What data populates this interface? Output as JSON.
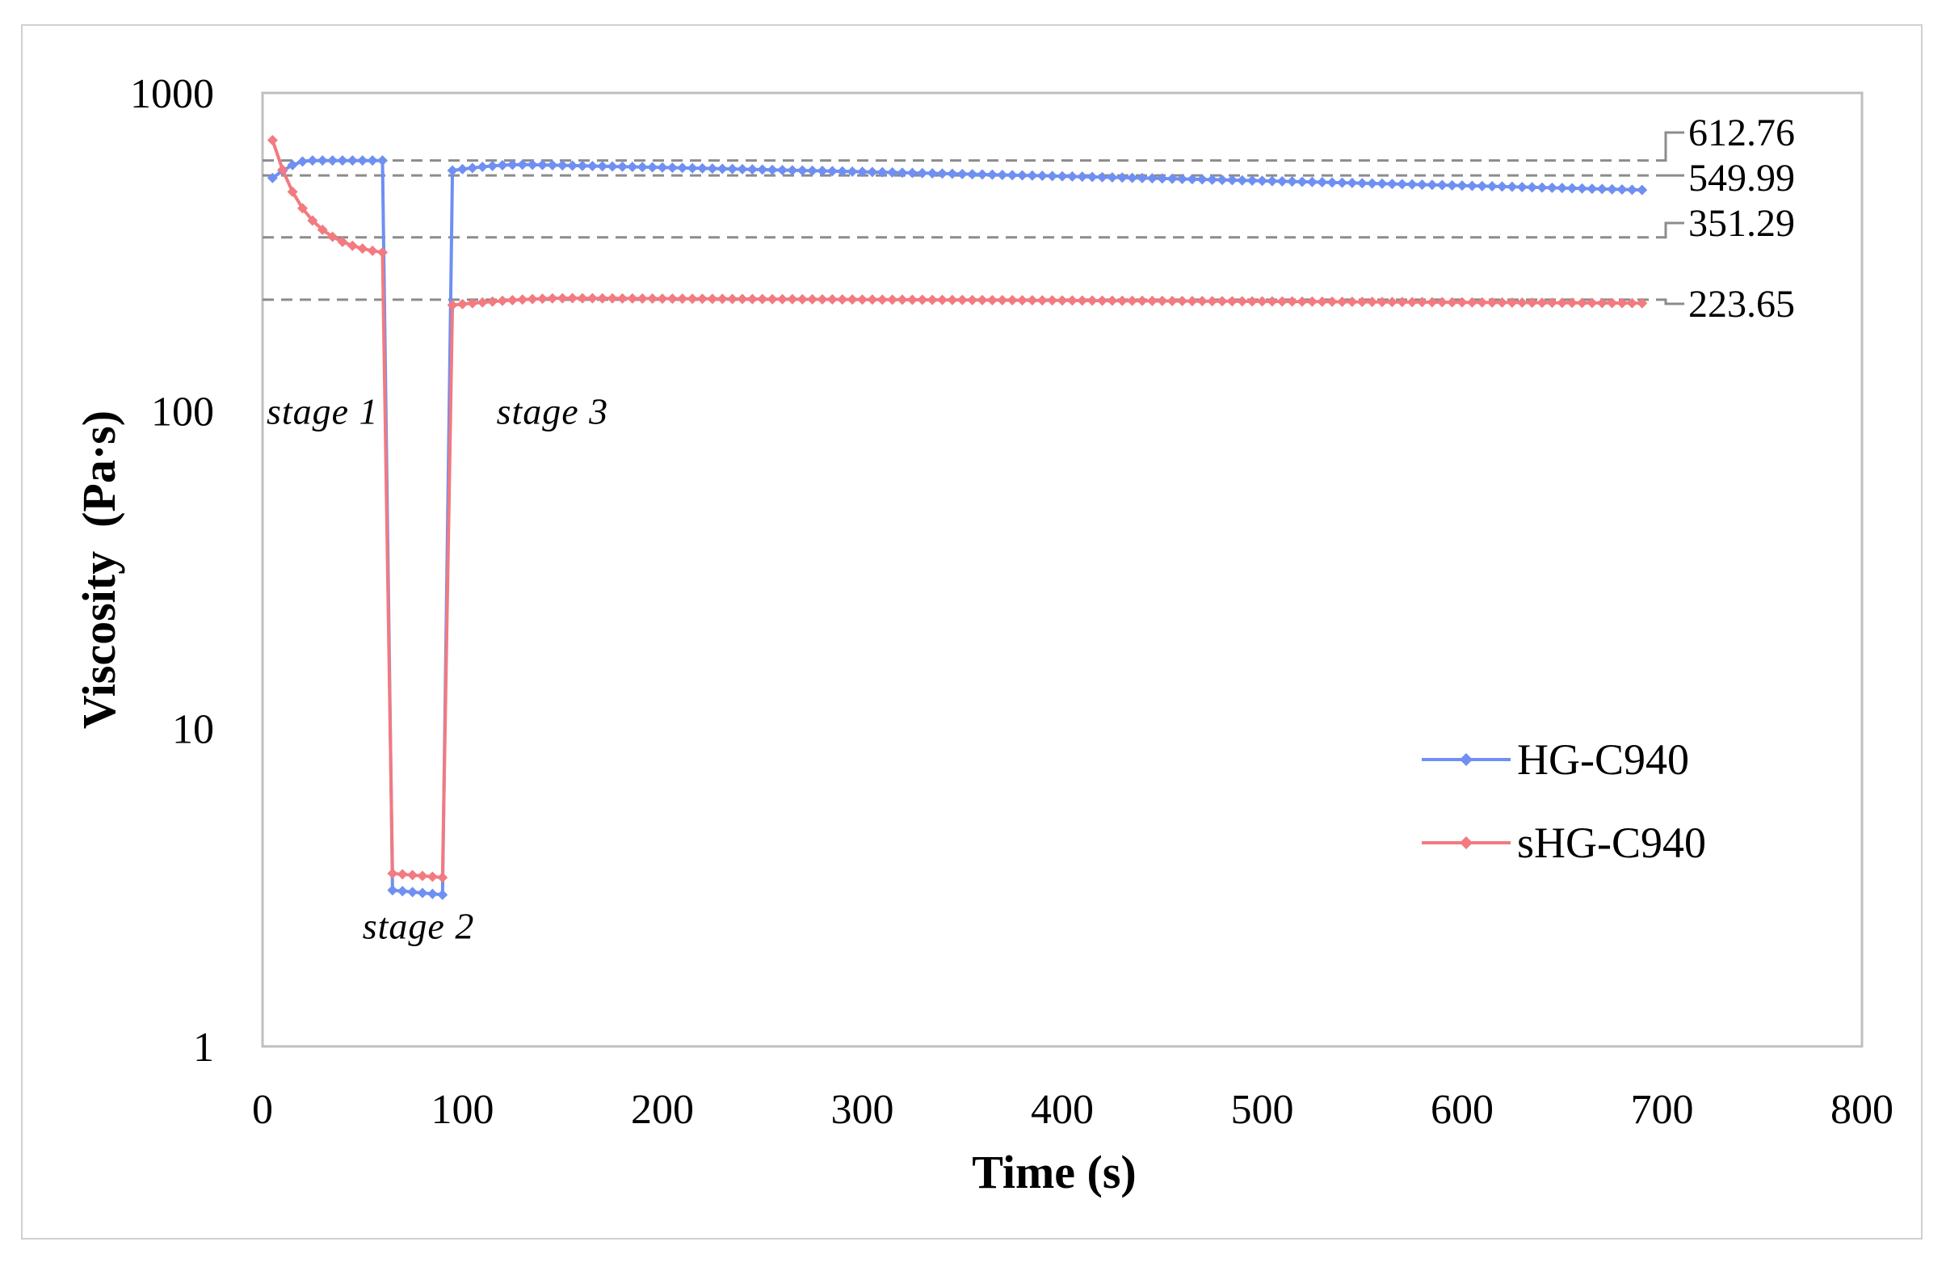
{
  "chart_data": {
    "type": "line",
    "title": "",
    "xlabel": "Time (s)",
    "ylabel": "Viscosity  (Pa·s)",
    "xlim": [
      0,
      800
    ],
    "ylim": [
      1,
      1000
    ],
    "yscale": "log",
    "grid": false,
    "legend_position": "right-middle",
    "x_ticks": [
      0,
      100,
      200,
      300,
      400,
      500,
      600,
      700,
      800
    ],
    "x_tick_labels": [
      "0",
      "100",
      "200",
      "300",
      "400",
      "500",
      "600",
      "700",
      "800"
    ],
    "y_ticks": [
      1,
      10,
      100,
      1000
    ],
    "y_tick_labels": [
      "1",
      "10",
      "100",
      "1000"
    ],
    "colors": {
      "HG-C940": "#6f8ff2",
      "sHG-C940": "#f27a80",
      "reference": "#8c8c8c",
      "plot_border": "#bfbfbf"
    },
    "series": [
      {
        "name": "HG-C940",
        "segments": [
          {
            "stage": 1,
            "x_start": 5,
            "x_end": 60,
            "n": 12,
            "y_start": 540,
            "y_end": 612.76,
            "y_peak": 612.76,
            "peak_at": 0.35
          },
          {
            "stage": 2,
            "x_start": 65,
            "x_end": 90,
            "n": 6,
            "y_start": 3.1,
            "y_end": 3.0
          },
          {
            "stage": 3,
            "x_start": 95,
            "x_end": 690,
            "n": 120,
            "y_start": 570,
            "y_end": 495,
            "y_peak": 595,
            "peak_at": 0.06
          }
        ]
      },
      {
        "name": "sHG-C940",
        "segments": [
          {
            "stage": 1,
            "x_start": 5,
            "x_end": 60,
            "n": 12,
            "curve": "decay",
            "y_start": 710,
            "y_end": 315
          },
          {
            "stage": 2,
            "x_start": 65,
            "x_end": 90,
            "n": 6,
            "y_start": 3.5,
            "y_end": 3.4
          },
          {
            "stage": 3,
            "x_start": 95,
            "x_end": 690,
            "n": 120,
            "y_start": 215,
            "y_end": 218,
            "y_peak": 226,
            "peak_at": 0.1
          }
        ]
      }
    ],
    "reference_lines": [
      {
        "label": "612.76",
        "y": 612.76
      },
      {
        "label": "549.99",
        "y": 549.99
      },
      {
        "label": "351.29",
        "y": 351.29
      },
      {
        "label": "223.65",
        "y": 223.65
      }
    ],
    "annotations": [
      {
        "text": "stage 1",
        "x": 30,
        "y": 100
      },
      {
        "text": "stage 2",
        "x": 78,
        "y": 2.4
      },
      {
        "text": "stage 3",
        "x": 145,
        "y": 100
      }
    ]
  }
}
